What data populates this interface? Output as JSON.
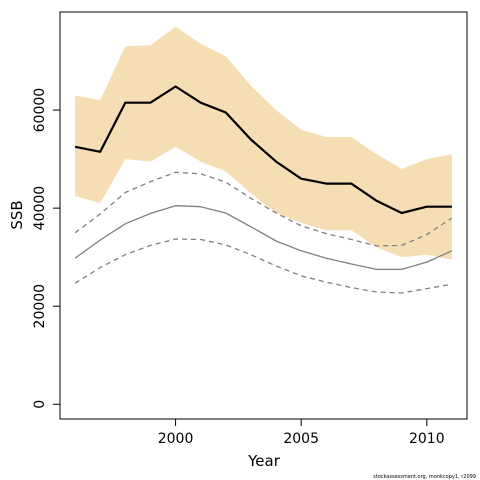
{
  "chart_data": {
    "type": "line",
    "xlabel": "Year",
    "ylabel": "SSB",
    "xlim": [
      1995.4,
      2011.6
    ],
    "ylim": [
      -3000,
      80000
    ],
    "x_ticks": [
      2000,
      2005,
      2010
    ],
    "y_ticks": [
      0,
      20000,
      40000,
      60000
    ],
    "x": [
      1996,
      1997,
      1998,
      1999,
      2000,
      2001,
      2002,
      2003,
      2004,
      2005,
      2006,
      2007,
      2008,
      2009,
      2010,
      2011
    ],
    "band": {
      "color": "#f5deb3",
      "upper": [
        63000,
        62000,
        73000,
        73200,
        77000,
        73500,
        71000,
        65000,
        60000,
        56000,
        54500,
        54500,
        51000,
        48000,
        50000,
        51000
      ],
      "lower": [
        42500,
        41000,
        50000,
        49500,
        52500,
        49500,
        47500,
        43000,
        39000,
        37000,
        35500,
        35500,
        32000,
        30000,
        30500,
        29500
      ]
    },
    "series": [
      {
        "style": "solid-bold",
        "color": "#000000",
        "values": [
          52500,
          51500,
          61500,
          61500,
          64800,
          61500,
          59500,
          54000,
          49500,
          46000,
          45000,
          45000,
          41500,
          39000,
          40300,
          40300
        ]
      },
      {
        "style": "dashed",
        "color": "#808080",
        "values": [
          35000,
          38800,
          43200,
          45400,
          47300,
          47000,
          45300,
          42000,
          39000,
          36400,
          34800,
          33600,
          32300,
          32400,
          34600,
          38000
        ]
      },
      {
        "style": "solid",
        "color": "#808080",
        "values": [
          29800,
          33500,
          36800,
          38900,
          40500,
          40300,
          39000,
          36200,
          33300,
          31300,
          29800,
          28600,
          27500,
          27500,
          29000,
          31300
        ]
      },
      {
        "style": "dashed",
        "color": "#808080",
        "values": [
          24700,
          27900,
          30500,
          32400,
          33700,
          33600,
          32500,
          30500,
          28200,
          26200,
          24900,
          23800,
          22900,
          22700,
          23600,
          24500
        ]
      }
    ]
  },
  "credit_text": "stockassessment.org, monkcopy1, r2099"
}
